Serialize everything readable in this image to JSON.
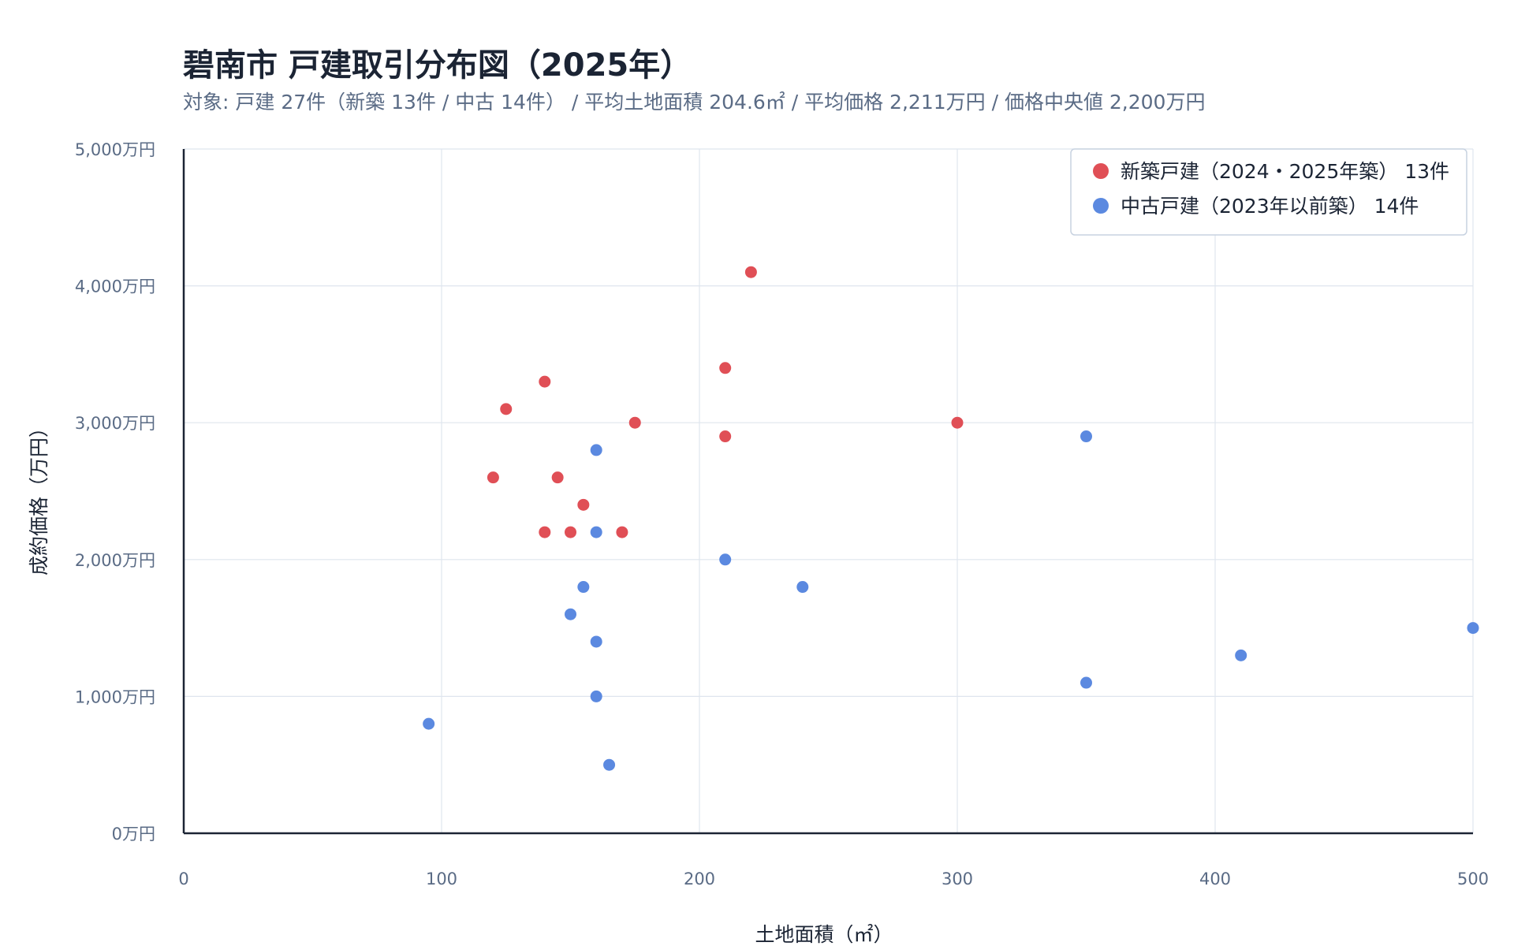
{
  "title": "碧南市 戸建取引分布図（2025年）",
  "subtitle": "対象: 戸建 27件（新築 13件 / 中古 14件） / 平均土地面積 204.6㎡ / 平均価格 2,211万円 / 価格中央値 2,200万円",
  "colors": {
    "new": "#e04f56",
    "used": "#5b89e0",
    "grid": "#dfe5ee",
    "axis": "#1b2434",
    "tick": "#5a6b85"
  },
  "chart_data": {
    "type": "scatter",
    "title": "碧南市 戸建取引分布図（2025年）",
    "xlabel": "土地面積（㎡）",
    "ylabel": "成約価格（万円）",
    "xlim": [
      0,
      500
    ],
    "ylim": [
      0,
      5000
    ],
    "x_ticks": [
      0,
      100,
      200,
      300,
      400,
      500
    ],
    "x_tick_labels": [
      "0",
      "100",
      "200",
      "300",
      "400",
      "500"
    ],
    "y_ticks": [
      0,
      1000,
      2000,
      3000,
      4000,
      5000
    ],
    "y_tick_labels": [
      "0万円",
      "1,000万円",
      "2,000万円",
      "3,000万円",
      "4,000万円",
      "5,000万円"
    ],
    "grid": true,
    "legend_position": "top-right",
    "series": [
      {
        "name": "新築戸建（2024・2025年築） 13件",
        "color": "#e04f56",
        "points": [
          {
            "x": 220,
            "y": 4100
          },
          {
            "x": 210,
            "y": 3400
          },
          {
            "x": 140,
            "y": 3300
          },
          {
            "x": 125,
            "y": 3100
          },
          {
            "x": 175,
            "y": 3000
          },
          {
            "x": 300,
            "y": 3000
          },
          {
            "x": 210,
            "y": 2900
          },
          {
            "x": 120,
            "y": 2600
          },
          {
            "x": 145,
            "y": 2600
          },
          {
            "x": 155,
            "y": 2400
          },
          {
            "x": 140,
            "y": 2200
          },
          {
            "x": 150,
            "y": 2200
          },
          {
            "x": 170,
            "y": 2200
          }
        ]
      },
      {
        "name": "中古戸建（2023年以前築） 14件",
        "color": "#5b89e0",
        "points": [
          {
            "x": 350,
            "y": 2900
          },
          {
            "x": 160,
            "y": 2800
          },
          {
            "x": 160,
            "y": 2200
          },
          {
            "x": 210,
            "y": 2000
          },
          {
            "x": 155,
            "y": 1800
          },
          {
            "x": 240,
            "y": 1800
          },
          {
            "x": 150,
            "y": 1600
          },
          {
            "x": 500,
            "y": 1500
          },
          {
            "x": 160,
            "y": 1400
          },
          {
            "x": 410,
            "y": 1300
          },
          {
            "x": 350,
            "y": 1100
          },
          {
            "x": 160,
            "y": 1000
          },
          {
            "x": 95,
            "y": 800
          },
          {
            "x": 165,
            "y": 500
          }
        ]
      }
    ]
  }
}
